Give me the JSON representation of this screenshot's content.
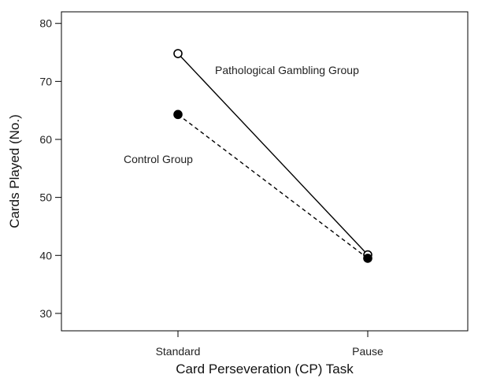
{
  "chart_data": {
    "type": "line",
    "categories": [
      "Standard",
      "Pause"
    ],
    "series": [
      {
        "name": "Pathological Gambling Group",
        "values": [
          74.8,
          40.1
        ],
        "line_style": "solid",
        "marker": "open-circle",
        "color": "#000000"
      },
      {
        "name": "Control Group",
        "values": [
          64.3,
          39.5
        ],
        "line_style": "dashed",
        "marker": "filled-circle",
        "color": "#000000"
      }
    ],
    "xlabel": "Card Perseveration (CP) Task",
    "ylabel": "Cards Played (No.)",
    "ylim": [
      27,
      82
    ],
    "yticks": [
      30,
      40,
      50,
      60,
      70,
      80
    ],
    "grid": false,
    "legend": "inline-annotations"
  }
}
